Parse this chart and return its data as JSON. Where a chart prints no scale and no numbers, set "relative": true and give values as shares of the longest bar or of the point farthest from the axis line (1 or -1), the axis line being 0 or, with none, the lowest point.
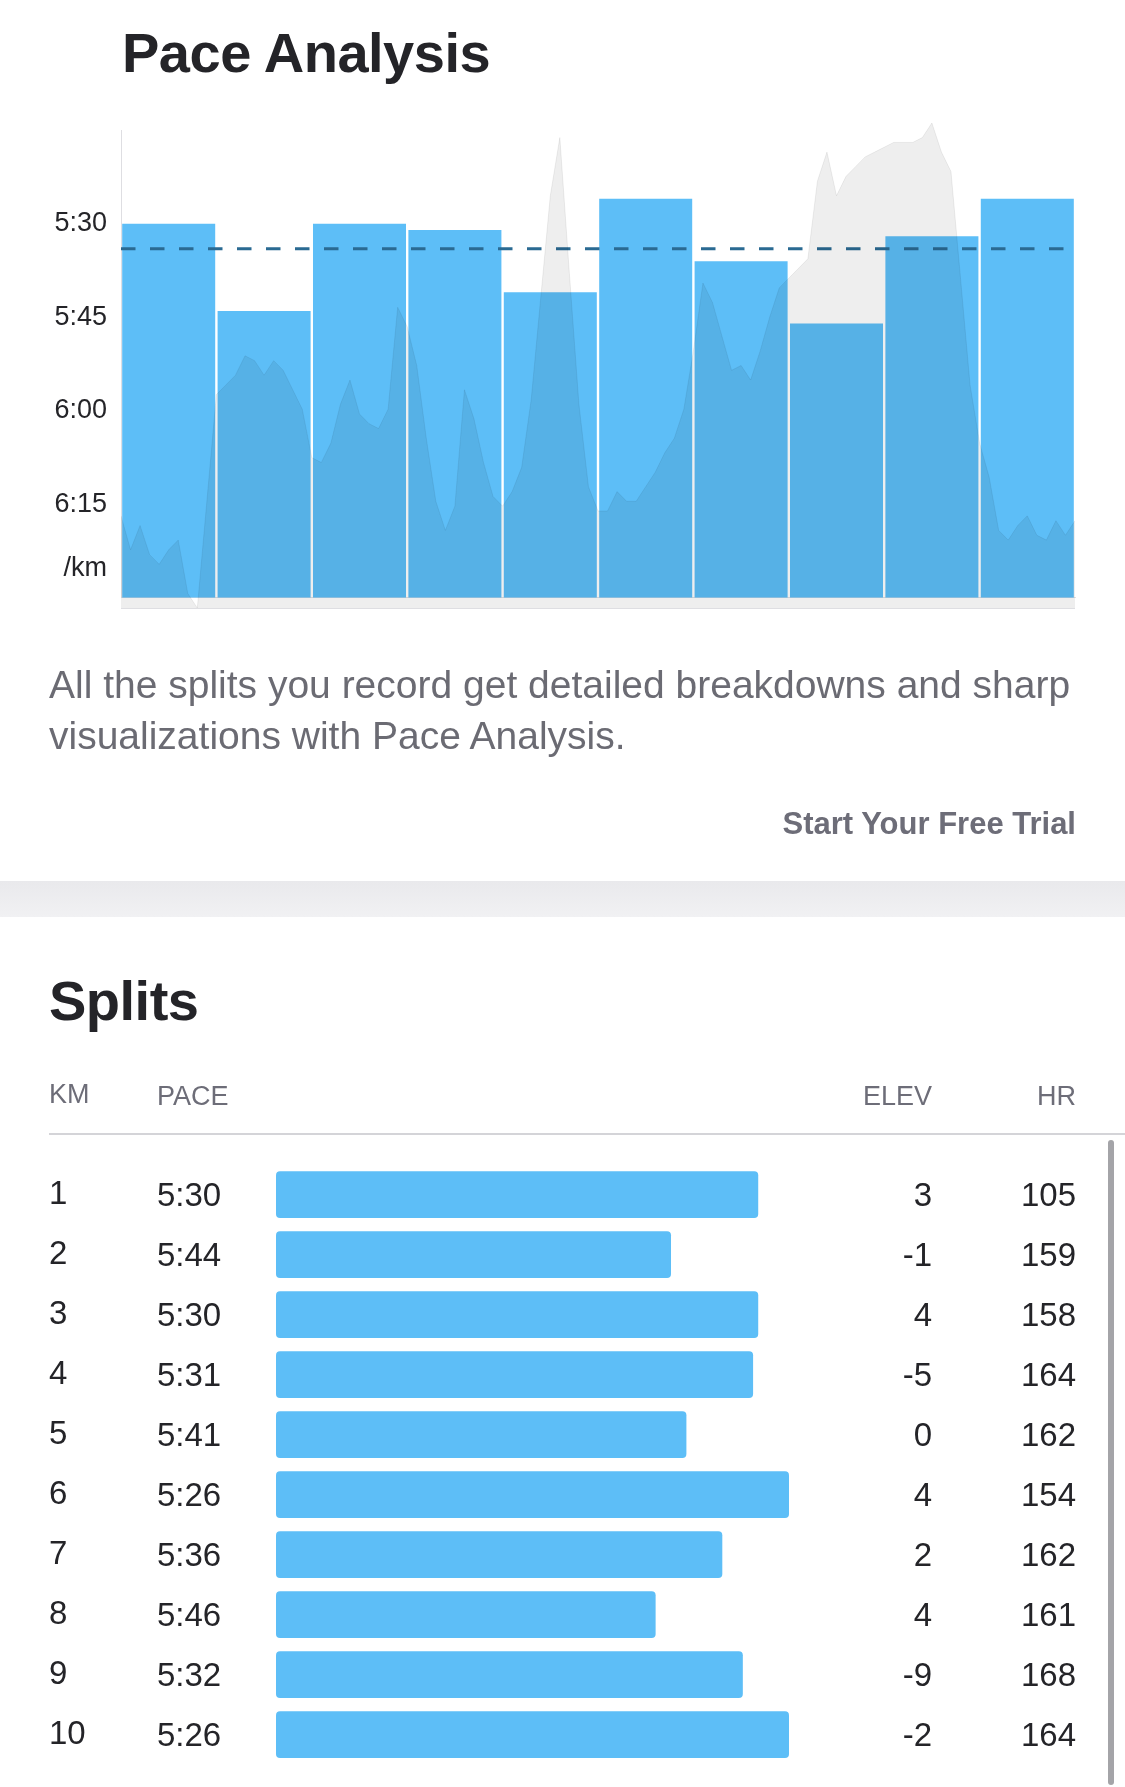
{
  "chart_data": [
    {
      "type": "bar",
      "title": "Pace Analysis",
      "ylabel": "/km",
      "categories": [
        null,
        null,
        null,
        null,
        null,
        null,
        null,
        null,
        null,
        null
      ],
      "base": [
        390,
        390,
        390,
        390,
        390,
        390,
        390,
        390,
        390,
        390
      ],
      "values": [
        -60,
        -46,
        -60,
        -59,
        -49,
        -64,
        -54,
        -44,
        -58,
        -64
      ],
      "color": "#5dbef7",
      "ylim": [
        390,
        315
      ],
      "yticks": [
        {
          "value": 330,
          "label": "5:30"
        },
        {
          "value": 345,
          "label": "5:45"
        },
        {
          "value": 360,
          "label": "6:00"
        },
        {
          "value": 375,
          "label": "6:15"
        }
      ],
      "ref_lines": [
        {
          "axis": "y",
          "value": 334,
          "color": "#2a6a92",
          "line_style": "dashed"
        }
      ],
      "annotations": [
        "All the splits you record get detailed breakdowns and sharp visualizations with Pace Analysis.",
        "Start Your Free Trial"
      ]
    },
    {
      "type": "area",
      "relative": true,
      "color": "#000000",
      "categories": [
        null,
        null,
        null,
        null,
        null,
        null,
        null,
        null,
        null,
        null,
        null,
        null,
        null,
        null,
        null,
        null,
        null,
        null,
        null,
        null,
        null,
        null,
        null,
        null,
        null,
        null,
        null,
        null,
        null,
        null,
        null,
        null,
        null,
        null,
        null,
        null,
        null,
        null,
        null,
        null,
        null,
        null,
        null,
        null,
        null,
        null,
        null,
        null,
        null,
        null,
        null,
        null,
        null,
        null,
        null,
        null,
        null,
        null,
        null,
        null,
        null,
        null,
        null,
        null,
        null,
        null,
        null,
        null,
        null,
        null,
        null,
        null,
        null,
        null,
        null,
        null,
        null,
        null,
        null,
        null,
        null,
        null,
        null,
        null,
        null,
        null,
        null,
        null,
        null,
        null,
        null,
        null,
        null,
        null,
        null,
        null,
        null,
        null,
        null,
        null,
        null
      ],
      "values": [
        0.19,
        0.12,
        0.17,
        0.11,
        0.09,
        0.12,
        0.14,
        0.03,
        0,
        0.22,
        0.44,
        0.46,
        0.48,
        0.52,
        0.51,
        0.48,
        0.51,
        0.49,
        0.45,
        0.41,
        0.31,
        0.3,
        0.34,
        0.42,
        0.47,
        0.4,
        0.38,
        0.37,
        0.41,
        0.62,
        0.58,
        0.5,
        0.35,
        0.22,
        0.16,
        0.21,
        0.45,
        0.39,
        0.3,
        0.23,
        0.21,
        0.24,
        0.29,
        0.43,
        0.64,
        0.85,
        0.97,
        0.69,
        0.42,
        0.25,
        0.2,
        0.2,
        0.24,
        0.22,
        0.22,
        0.25,
        0.28,
        0.32,
        0.35,
        0.41,
        0.53,
        0.67,
        0.63,
        0.56,
        0.49,
        0.5,
        0.47,
        0.53,
        0.6,
        0.66,
        0.68,
        0.7,
        0.72,
        0.88,
        0.94,
        0.85,
        0.89,
        0.91,
        0.93,
        0.94,
        0.95,
        0.96,
        0.96,
        0.96,
        0.97,
        1,
        0.94,
        0.9,
        0.68,
        0.46,
        0.34,
        0.27,
        0.16,
        0.14,
        0.17,
        0.19,
        0.15,
        0.14,
        0.18,
        0.15,
        0.18
      ]
    },
    {
      "type": "bar",
      "orientation": "horizontal",
      "relative": true,
      "title": "Splits",
      "ylabel": "KM",
      "categories": [
        "1",
        "2",
        "3",
        "4",
        "5",
        "6",
        "7",
        "8",
        "9",
        "10"
      ],
      "values": [
        0.94,
        0.77,
        0.94,
        0.93,
        0.8,
        1,
        0.87,
        0.74,
        0.91,
        1
      ],
      "color": "#5dbef7"
    },
    {
      "type": "other",
      "title": "PACE",
      "annotations": [
        "5:30",
        "5:44",
        "5:30",
        "5:31",
        "5:41",
        "5:26",
        "5:36",
        "5:46",
        "5:32",
        "5:26"
      ]
    },
    {
      "type": "other",
      "title": "ELEV",
      "annotations": [
        "3",
        "-1",
        "4",
        "-5",
        "0",
        "4",
        "2",
        "4",
        "-9",
        "-2"
      ]
    },
    {
      "type": "other",
      "title": "HR",
      "annotations": [
        "105",
        "159",
        "158",
        "164",
        "162",
        "154",
        "162",
        "161",
        "168",
        "164"
      ]
    }
  ]
}
